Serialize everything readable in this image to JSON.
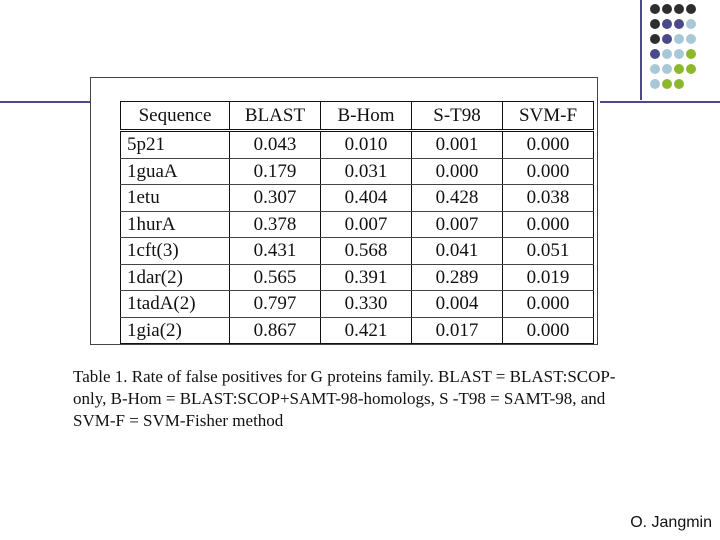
{
  "decor": {
    "line_color": "#4a4a8a",
    "dot_colors": [
      "#2e2e2e",
      "#4a4a8a",
      "#a8c8d8",
      "#8cb82a"
    ]
  },
  "table": {
    "headers": [
      "Sequence",
      "BLAST",
      "B-Hom",
      "S-T98",
      "SVM-F"
    ],
    "rows": [
      [
        "5p21",
        "0.043",
        "0.010",
        "0.001",
        "0.000"
      ],
      [
        "1guaA",
        "0.179",
        "0.031",
        "0.000",
        "0.000"
      ],
      [
        "1etu",
        "0.307",
        "0.404",
        "0.428",
        "0.038"
      ],
      [
        "1hurA",
        "0.378",
        "0.007",
        "0.007",
        "0.000"
      ],
      [
        "1cft(3)",
        "0.431",
        "0.568",
        "0.041",
        "0.051"
      ],
      [
        "1dar(2)",
        "0.565",
        "0.391",
        "0.289",
        "0.019"
      ],
      [
        "1tadA(2)",
        "0.797",
        "0.330",
        "0.004",
        "0.000"
      ],
      [
        "1gia(2)",
        "0.867",
        "0.421",
        "0.017",
        "0.000"
      ]
    ]
  },
  "caption": "Table 1. Rate of false positives for G proteins family. BLAST = BLAST:SCOP-only, B-Hom = BLAST:SCOP+SAMT-98-homologs, S -T98 = SAMT-98, and SVM-F = SVM-Fisher method",
  "author": "O. Jangmin"
}
